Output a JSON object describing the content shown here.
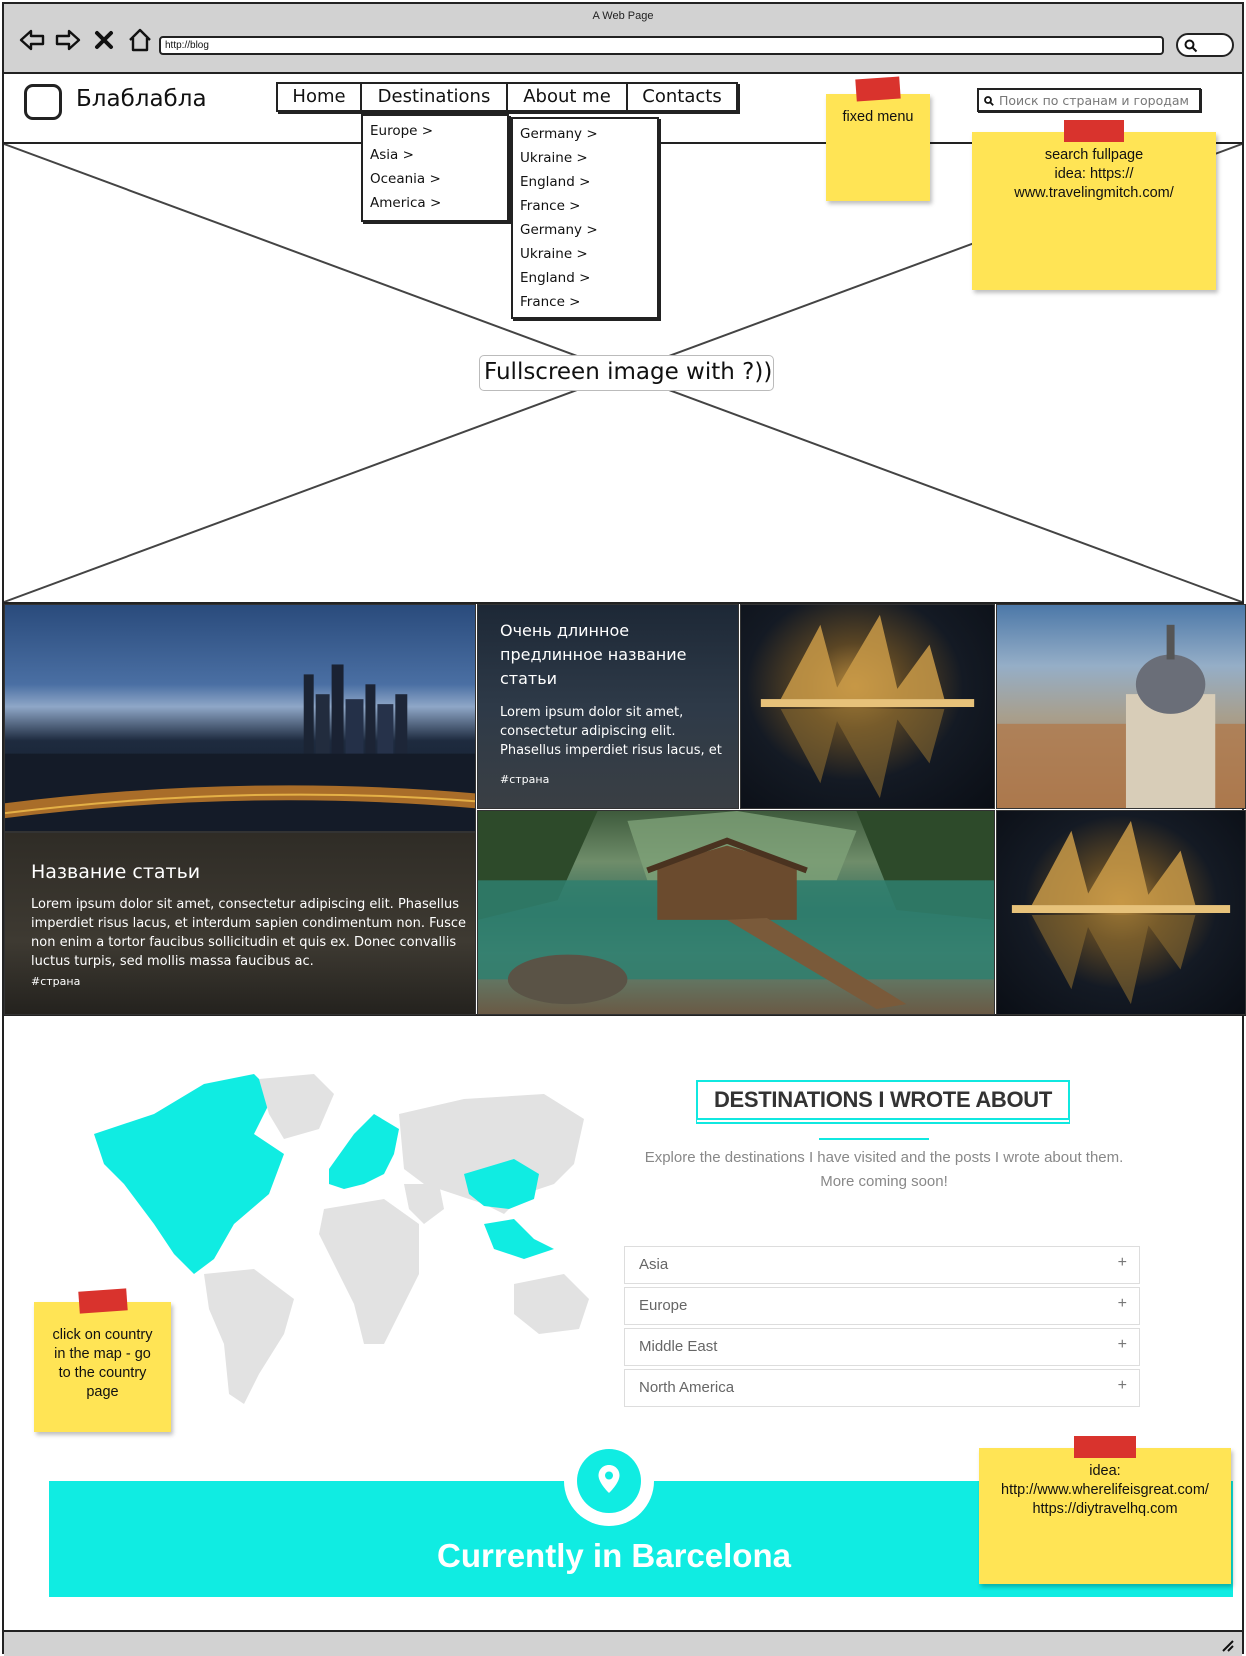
{
  "window": {
    "title": "A Web Page",
    "url": "http://blog"
  },
  "site": {
    "name": "Блаблабла",
    "menu": [
      {
        "label": "Home"
      },
      {
        "label": "Destinations"
      },
      {
        "label": "About me"
      },
      {
        "label": "Contacts"
      }
    ],
    "search_placeholder": "Поиск по странам и городам"
  },
  "dropdown_regions": [
    "Europe >",
    "Asia >",
    "Oceania >",
    "America >"
  ],
  "dropdown_countries": [
    "Germany >",
    "Ukraine >",
    "England >",
    "France >",
    "Germany >",
    "Ukraine >",
    "England >",
    "France >"
  ],
  "hero": {
    "label": "Fullscreen image with ?))"
  },
  "notes": {
    "fixed_menu": "fixed menu",
    "search": [
      "search fullpage",
      "idea: https://",
      "www.travelingmitch.com/"
    ],
    "map": [
      "click on country",
      "in the map - go",
      "to the country",
      "page"
    ],
    "idea": [
      "idea:",
      "http://www.wherelifeisgreat.com/",
      "https://diytravelhq.com"
    ]
  },
  "articles": {
    "small": {
      "title": "Очень длинное предлинное название статьи",
      "body": "Lorem ipsum dolor sit amet, consectetur adipiscing elit. Phasellus imperdiet risus lacus, et interdum",
      "tag": "#страна"
    },
    "large": {
      "title": "Название статьи",
      "body": "Lorem ipsum dolor sit amet, consectetur adipiscing elit. Phasellus imperdiet risus lacus, et interdum sapien condimentum non. Fusce non enim a tortor faucibus sollicitudin et quis ex. Donec convallis luctus turpis, sed mollis massa faucibus ac.",
      "tag": "#страна"
    }
  },
  "destinations": {
    "title": "DESTINATIONS I WROTE ABOUT",
    "subtitle_line1": "Explore the destinations I have visited and the posts I wrote about them.",
    "subtitle_line2": "More coming soon!",
    "regions": [
      {
        "label": "Asia",
        "icon": "+"
      },
      {
        "label": "Europe",
        "icon": "+"
      },
      {
        "label": "Middle East",
        "icon": "+"
      },
      {
        "label": "North America",
        "icon": "+"
      }
    ]
  },
  "current": {
    "text": "Currently in Barcelona"
  },
  "colors": {
    "accent": "#10ece2",
    "sticky": "#ffe455",
    "tape": "#d9332d"
  }
}
